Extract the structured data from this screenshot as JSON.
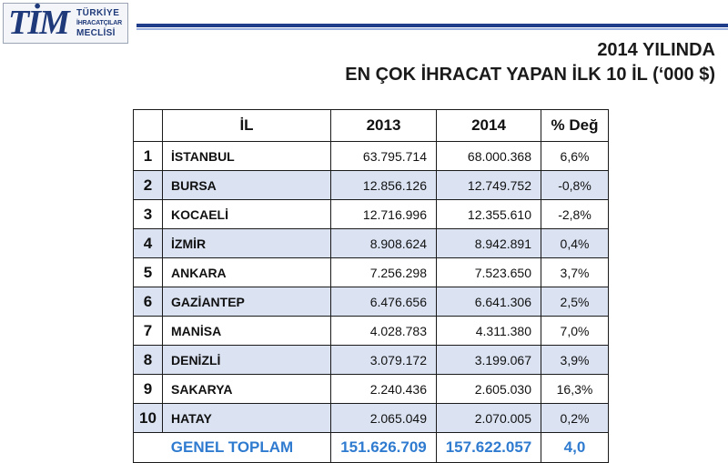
{
  "logo": {
    "mark": "TİM",
    "line1": "TÜRKİYE",
    "line2": "İHRACATÇILAR",
    "line3": "MECLİSİ"
  },
  "title": {
    "line1": "2014 YILINDA",
    "line2": "EN ÇOK İHRACAT YAPAN İLK 10 İL (‘000 $)"
  },
  "table": {
    "headers": {
      "rank": "",
      "city": "İL",
      "y2013": "2013",
      "y2014": "2014",
      "change": "% Değ"
    },
    "rows": [
      {
        "rank": "1",
        "city": "İSTANBUL",
        "y2013": "63.795.714",
        "y2014": "68.000.368",
        "change": "6,6%"
      },
      {
        "rank": "2",
        "city": "BURSA",
        "y2013": "12.856.126",
        "y2014": "12.749.752",
        "change": "-0,8%"
      },
      {
        "rank": "3",
        "city": "KOCAELİ",
        "y2013": "12.716.996",
        "y2014": "12.355.610",
        "change": "-2,8%"
      },
      {
        "rank": "4",
        "city": "İZMİR",
        "y2013": "8.908.624",
        "y2014": "8.942.891",
        "change": "0,4%"
      },
      {
        "rank": "5",
        "city": "ANKARA",
        "y2013": "7.256.298",
        "y2014": "7.523.650",
        "change": "3,7%"
      },
      {
        "rank": "6",
        "city": "GAZİANTEP",
        "y2013": "6.476.656",
        "y2014": "6.641.306",
        "change": "2,5%"
      },
      {
        "rank": "7",
        "city": "MANİSA",
        "y2013": "4.028.783",
        "y2014": "4.311.380",
        "change": "7,0%"
      },
      {
        "rank": "8",
        "city": "DENİZLİ",
        "y2013": "3.079.172",
        "y2014": "3.199.067",
        "change": "3,9%"
      },
      {
        "rank": "9",
        "city": "SAKARYA",
        "y2013": "2.240.436",
        "y2014": "2.605.030",
        "change": "16,3%"
      },
      {
        "rank": "10",
        "city": "HATAY",
        "y2013": "2.065.049",
        "y2014": "2.070.005",
        "change": "0,2%"
      }
    ],
    "total": {
      "label": "GENEL TOPLAM",
      "y2013": "151.626.709",
      "y2014": "157.622.057",
      "change": "4,0"
    }
  },
  "colors": {
    "brand": "#1f3a7a",
    "stripe": "#1f3d8a",
    "row_alt": "#dbe3f3",
    "total_text": "#2f7bd0"
  }
}
